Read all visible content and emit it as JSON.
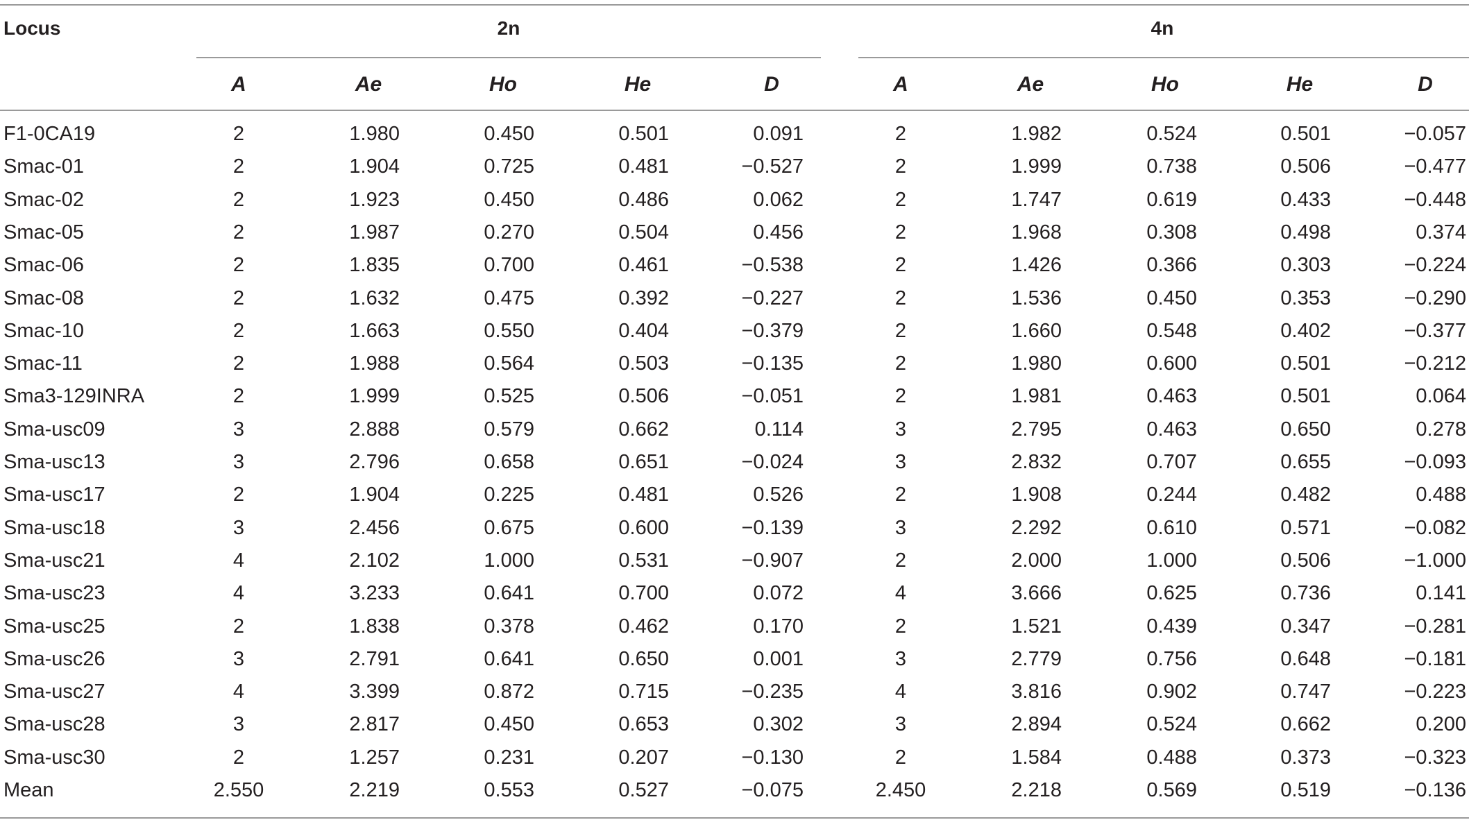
{
  "table": {
    "locus_header": "Locus",
    "groups": [
      "2n",
      "4n"
    ],
    "subheaders": [
      "A",
      "Ae",
      "Ho",
      "He",
      "D"
    ],
    "rows": [
      {
        "locus": "F1-0CA19",
        "d2": [
          "2",
          "1.980",
          "0.450",
          "0.501",
          "0.091"
        ],
        "d4": [
          "2",
          "1.982",
          "0.524",
          "0.501",
          "−0.057"
        ]
      },
      {
        "locus": "Smac-01",
        "d2": [
          "2",
          "1.904",
          "0.725",
          "0.481",
          "−0.527"
        ],
        "d4": [
          "2",
          "1.999",
          "0.738",
          "0.506",
          "−0.477"
        ]
      },
      {
        "locus": "Smac-02",
        "d2": [
          "2",
          "1.923",
          "0.450",
          "0.486",
          "0.062"
        ],
        "d4": [
          "2",
          "1.747",
          "0.619",
          "0.433",
          "−0.448"
        ]
      },
      {
        "locus": "Smac-05",
        "d2": [
          "2",
          "1.987",
          "0.270",
          "0.504",
          "0.456"
        ],
        "d4": [
          "2",
          "1.968",
          "0.308",
          "0.498",
          "0.374"
        ]
      },
      {
        "locus": "Smac-06",
        "d2": [
          "2",
          "1.835",
          "0.700",
          "0.461",
          "−0.538"
        ],
        "d4": [
          "2",
          "1.426",
          "0.366",
          "0.303",
          "−0.224"
        ]
      },
      {
        "locus": "Smac-08",
        "d2": [
          "2",
          "1.632",
          "0.475",
          "0.392",
          "−0.227"
        ],
        "d4": [
          "2",
          "1.536",
          "0.450",
          "0.353",
          "−0.290"
        ]
      },
      {
        "locus": "Smac-10",
        "d2": [
          "2",
          "1.663",
          "0.550",
          "0.404",
          "−0.379"
        ],
        "d4": [
          "2",
          "1.660",
          "0.548",
          "0.402",
          "−0.377"
        ]
      },
      {
        "locus": "Smac-11",
        "d2": [
          "2",
          "1.988",
          "0.564",
          "0.503",
          "−0.135"
        ],
        "d4": [
          "2",
          "1.980",
          "0.600",
          "0.501",
          "−0.212"
        ]
      },
      {
        "locus": "Sma3-129INRA",
        "d2": [
          "2",
          "1.999",
          "0.525",
          "0.506",
          "−0.051"
        ],
        "d4": [
          "2",
          "1.981",
          "0.463",
          "0.501",
          "0.064"
        ]
      },
      {
        "locus": "Sma-usc09",
        "d2": [
          "3",
          "2.888",
          "0.579",
          "0.662",
          "0.114"
        ],
        "d4": [
          "3",
          "2.795",
          "0.463",
          "0.650",
          "0.278"
        ]
      },
      {
        "locus": "Sma-usc13",
        "d2": [
          "3",
          "2.796",
          "0.658",
          "0.651",
          "−0.024"
        ],
        "d4": [
          "3",
          "2.832",
          "0.707",
          "0.655",
          "−0.093"
        ]
      },
      {
        "locus": "Sma-usc17",
        "d2": [
          "2",
          "1.904",
          "0.225",
          "0.481",
          "0.526"
        ],
        "d4": [
          "2",
          "1.908",
          "0.244",
          "0.482",
          "0.488"
        ]
      },
      {
        "locus": "Sma-usc18",
        "d2": [
          "3",
          "2.456",
          "0.675",
          "0.600",
          "−0.139"
        ],
        "d4": [
          "3",
          "2.292",
          "0.610",
          "0.571",
          "−0.082"
        ]
      },
      {
        "locus": "Sma-usc21",
        "d2": [
          "4",
          "2.102",
          "1.000",
          "0.531",
          "−0.907"
        ],
        "d4": [
          "2",
          "2.000",
          "1.000",
          "0.506",
          "−1.000"
        ]
      },
      {
        "locus": "Sma-usc23",
        "d2": [
          "4",
          "3.233",
          "0.641",
          "0.700",
          "0.072"
        ],
        "d4": [
          "4",
          "3.666",
          "0.625",
          "0.736",
          "0.141"
        ]
      },
      {
        "locus": "Sma-usc25",
        "d2": [
          "2",
          "1.838",
          "0.378",
          "0.462",
          "0.170"
        ],
        "d4": [
          "2",
          "1.521",
          "0.439",
          "0.347",
          "−0.281"
        ]
      },
      {
        "locus": "Sma-usc26",
        "d2": [
          "3",
          "2.791",
          "0.641",
          "0.650",
          "0.001"
        ],
        "d4": [
          "3",
          "2.779",
          "0.756",
          "0.648",
          "−0.181"
        ]
      },
      {
        "locus": "Sma-usc27",
        "d2": [
          "4",
          "3.399",
          "0.872",
          "0.715",
          "−0.235"
        ],
        "d4": [
          "4",
          "3.816",
          "0.902",
          "0.747",
          "−0.223"
        ]
      },
      {
        "locus": "Sma-usc28",
        "d2": [
          "3",
          "2.817",
          "0.450",
          "0.653",
          "0.302"
        ],
        "d4": [
          "3",
          "2.894",
          "0.524",
          "0.662",
          "0.200"
        ]
      },
      {
        "locus": "Sma-usc30",
        "d2": [
          "2",
          "1.257",
          "0.231",
          "0.207",
          "−0.130"
        ],
        "d4": [
          "2",
          "1.584",
          "0.488",
          "0.373",
          "−0.323"
        ]
      },
      {
        "locus": "Mean",
        "d2": [
          "2.550",
          "2.219",
          "0.553",
          "0.527",
          "−0.075"
        ],
        "d4": [
          "2.450",
          "2.218",
          "0.569",
          "0.519",
          "−0.136"
        ]
      }
    ]
  }
}
